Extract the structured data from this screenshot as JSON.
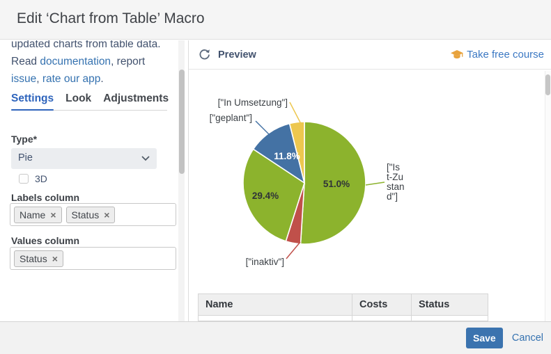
{
  "dialog": {
    "title": "Edit ‘Chart from Table’ Macro"
  },
  "sidebar": {
    "intro": {
      "clipped_line": "updated charts from table data.",
      "seg_read": "Read ",
      "link_documentation": "documentation",
      "seg_report": ", report ",
      "link_issue": "issue",
      "seg_comma": ", ",
      "link_rate": "rate our app",
      "seg_period": "."
    },
    "tabs": [
      {
        "label": "Settings",
        "active": true
      },
      {
        "label": "Look",
        "active": false
      },
      {
        "label": "Adjustments",
        "active": false
      }
    ],
    "form": {
      "type_label": "Type*",
      "type_value": "Pie",
      "threed_label": "3D",
      "labels_column_label": "Labels column",
      "labels_tags": [
        "Name",
        "Status"
      ],
      "values_column_label": "Values column",
      "values_tags": [
        "Status"
      ]
    }
  },
  "preview": {
    "title": "Preview",
    "course_link": "Take free course"
  },
  "table": {
    "columns": [
      "Name",
      "Costs",
      "Status"
    ]
  },
  "footer": {
    "save": "Save",
    "cancel": "Cancel"
  },
  "ui": {
    "remove_glyph": "×",
    "accent_blue": "#3572b0",
    "save_bg": "#3b73af",
    "cap_orange": "#e8a33d"
  },
  "chart_data": {
    "type": "pie",
    "unit": "percent",
    "direction": "clockwise",
    "start_angle_deg": 0,
    "legend_position": "callout-labels",
    "slices": [
      {
        "label": "[\"Ist-Zustand\"]",
        "value": 51.0,
        "display_pct": "51.0%",
        "color": "#8cb32d"
      },
      {
        "label": "[\"inaktiv\"]",
        "value": 3.9,
        "display_pct": "",
        "color": "#c0504a"
      },
      {
        "label": "",
        "value": 29.4,
        "display_pct": "29.4%",
        "color": "#8cb32d"
      },
      {
        "label": "[\"geplant\"]",
        "value": 11.8,
        "display_pct": "11.8%",
        "color": "#4472a4"
      },
      {
        "label": "[\"In Umsetzung\"]",
        "value": 3.9,
        "display_pct": "",
        "color": "#edc74f"
      }
    ],
    "wrapped_right_label_lines": [
      "[\"Is",
      "t-Zu",
      "stan",
      "d\"]"
    ]
  }
}
